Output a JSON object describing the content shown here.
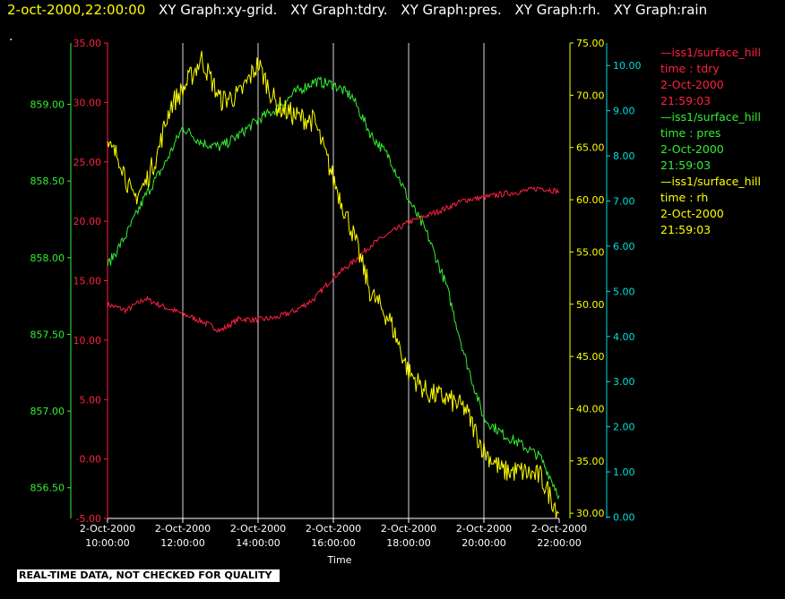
{
  "header": {
    "timestamp": "2-oct-2000,22:00:00",
    "graphs": [
      "XY Graph:xy-grid.",
      "XY Graph:tdry.",
      "XY Graph:pres.",
      "XY Graph:rh.",
      "XY Graph:rain"
    ]
  },
  "dot": ".",
  "notice": "REAL-TIME DATA, NOT CHECKED FOR QUALITY",
  "colors": {
    "tdry": "#ff2040",
    "pres": "#33ee33",
    "rh": "#ffff00",
    "rain": "#00dddd",
    "grid": "#ffffff",
    "background": "#000000"
  },
  "legend": [
    {
      "name": "—iss1/surface_hill",
      "field": "time : tdry",
      "date": "2-Oct-2000",
      "time": "21:59:03",
      "color": "#ff2040"
    },
    {
      "name": "—iss1/surface_hill",
      "field": "time : pres",
      "date": "2-Oct-2000",
      "time": "21:59:03",
      "color": "#33ee33"
    },
    {
      "name": "—iss1/surface_hill",
      "field": "time : rh",
      "date": "2-Oct-2000",
      "time": "21:59:03",
      "color": "#ffff00"
    }
  ],
  "chart_data": {
    "type": "line",
    "xlabel": "Time",
    "x_ticks": [
      {
        "date": "2-Oct-2000",
        "time": "10:00:00"
      },
      {
        "date": "2-Oct-2000",
        "time": "12:00:00"
      },
      {
        "date": "2-Oct-2000",
        "time": "14:00:00"
      },
      {
        "date": "2-Oct-2000",
        "time": "16:00:00"
      },
      {
        "date": "2-Oct-2000",
        "time": "18:00:00"
      },
      {
        "date": "2-Oct-2000",
        "time": "20:00:00"
      },
      {
        "date": "2-Oct-2000",
        "time": "22:00:00"
      }
    ],
    "xlim": [
      "2000-10-02T10:00",
      "2000-10-02T22:00"
    ],
    "grid": "vertical",
    "axes": {
      "tdry": {
        "ticks": [
          "-5.00",
          "0.00",
          "5.00",
          "10.00",
          "15.00",
          "20.00",
          "25.00",
          "30.00",
          "35.00"
        ],
        "ylim": [
          -5,
          35
        ]
      },
      "pres": {
        "ticks": [
          "856.50",
          "857.00",
          "857.50",
          "858.00",
          "858.50",
          "859.00"
        ],
        "ylim": [
          856.3,
          859.4
        ]
      },
      "rh": {
        "ticks": [
          "30.00",
          "35.00",
          "40.00",
          "45.00",
          "50.00",
          "55.00",
          "60.00",
          "65.00",
          "70.00",
          "75.00"
        ],
        "ylim": [
          29.5,
          75
        ]
      },
      "rain": {
        "ticks": [
          "0.00",
          "1.00",
          "2.00",
          "3.00",
          "4.00",
          "5.00",
          "6.00",
          "7.00",
          "8.00",
          "9.00",
          "10.00"
        ],
        "ylim": [
          -0.03,
          10.5
        ]
      }
    },
    "series": [
      {
        "name": "tdry",
        "axis": "tdry",
        "x": [
          "10:00",
          "10:30",
          "11:00",
          "11:30",
          "12:00",
          "12:30",
          "13:00",
          "13:30",
          "14:00",
          "14:30",
          "15:00",
          "15:30",
          "16:00",
          "16:30",
          "17:00",
          "17:30",
          "18:00",
          "18:30",
          "19:00",
          "19:30",
          "20:00",
          "20:30",
          "21:00",
          "21:30",
          "22:00"
        ],
        "y": [
          13.0,
          12.5,
          13.5,
          12.8,
          12.2,
          11.6,
          10.8,
          11.8,
          11.7,
          11.9,
          12.5,
          13.5,
          15.3,
          16.5,
          18.0,
          19.0,
          19.9,
          20.5,
          21.1,
          21.8,
          22.0,
          22.3,
          22.5,
          22.8,
          22.5
        ]
      },
      {
        "name": "pres",
        "axis": "pres",
        "x": [
          "10:00",
          "10:30",
          "11:00",
          "11:30",
          "12:00",
          "12:30",
          "13:00",
          "13:30",
          "14:00",
          "14:30",
          "15:00",
          "15:30",
          "16:00",
          "16:30",
          "17:00",
          "17:30",
          "18:00",
          "18:30",
          "19:00",
          "19:30",
          "20:00",
          "20:30",
          "21:00",
          "21:30",
          "22:00"
        ],
        "y": [
          857.95,
          858.15,
          858.4,
          858.6,
          858.85,
          858.75,
          858.72,
          858.8,
          858.9,
          858.97,
          859.08,
          859.15,
          859.13,
          859.05,
          858.8,
          858.65,
          858.38,
          858.15,
          857.82,
          857.35,
          856.95,
          856.85,
          856.78,
          856.7,
          856.45
        ]
      },
      {
        "name": "rh",
        "axis": "rh",
        "x": [
          "10:00",
          "10:20",
          "10:40",
          "11:00",
          "11:20",
          "11:40",
          "12:00",
          "12:30",
          "13:00",
          "13:30",
          "14:00",
          "14:30",
          "15:00",
          "15:30",
          "16:00",
          "16:30",
          "17:00",
          "17:30",
          "18:00",
          "18:30",
          "19:00",
          "19:30",
          "20:00",
          "20:30",
          "21:00",
          "21:30",
          "22:00"
        ],
        "y": [
          65.0,
          64.0,
          60.0,
          61.5,
          64.5,
          69.0,
          70.5,
          73.5,
          69.5,
          70.0,
          73.0,
          69.0,
          68.0,
          67.5,
          62.0,
          57.0,
          51.0,
          48.5,
          43.5,
          41.5,
          41.0,
          40.0,
          36.0,
          34.0,
          34.0,
          33.5,
          30.0
        ]
      }
    ]
  }
}
